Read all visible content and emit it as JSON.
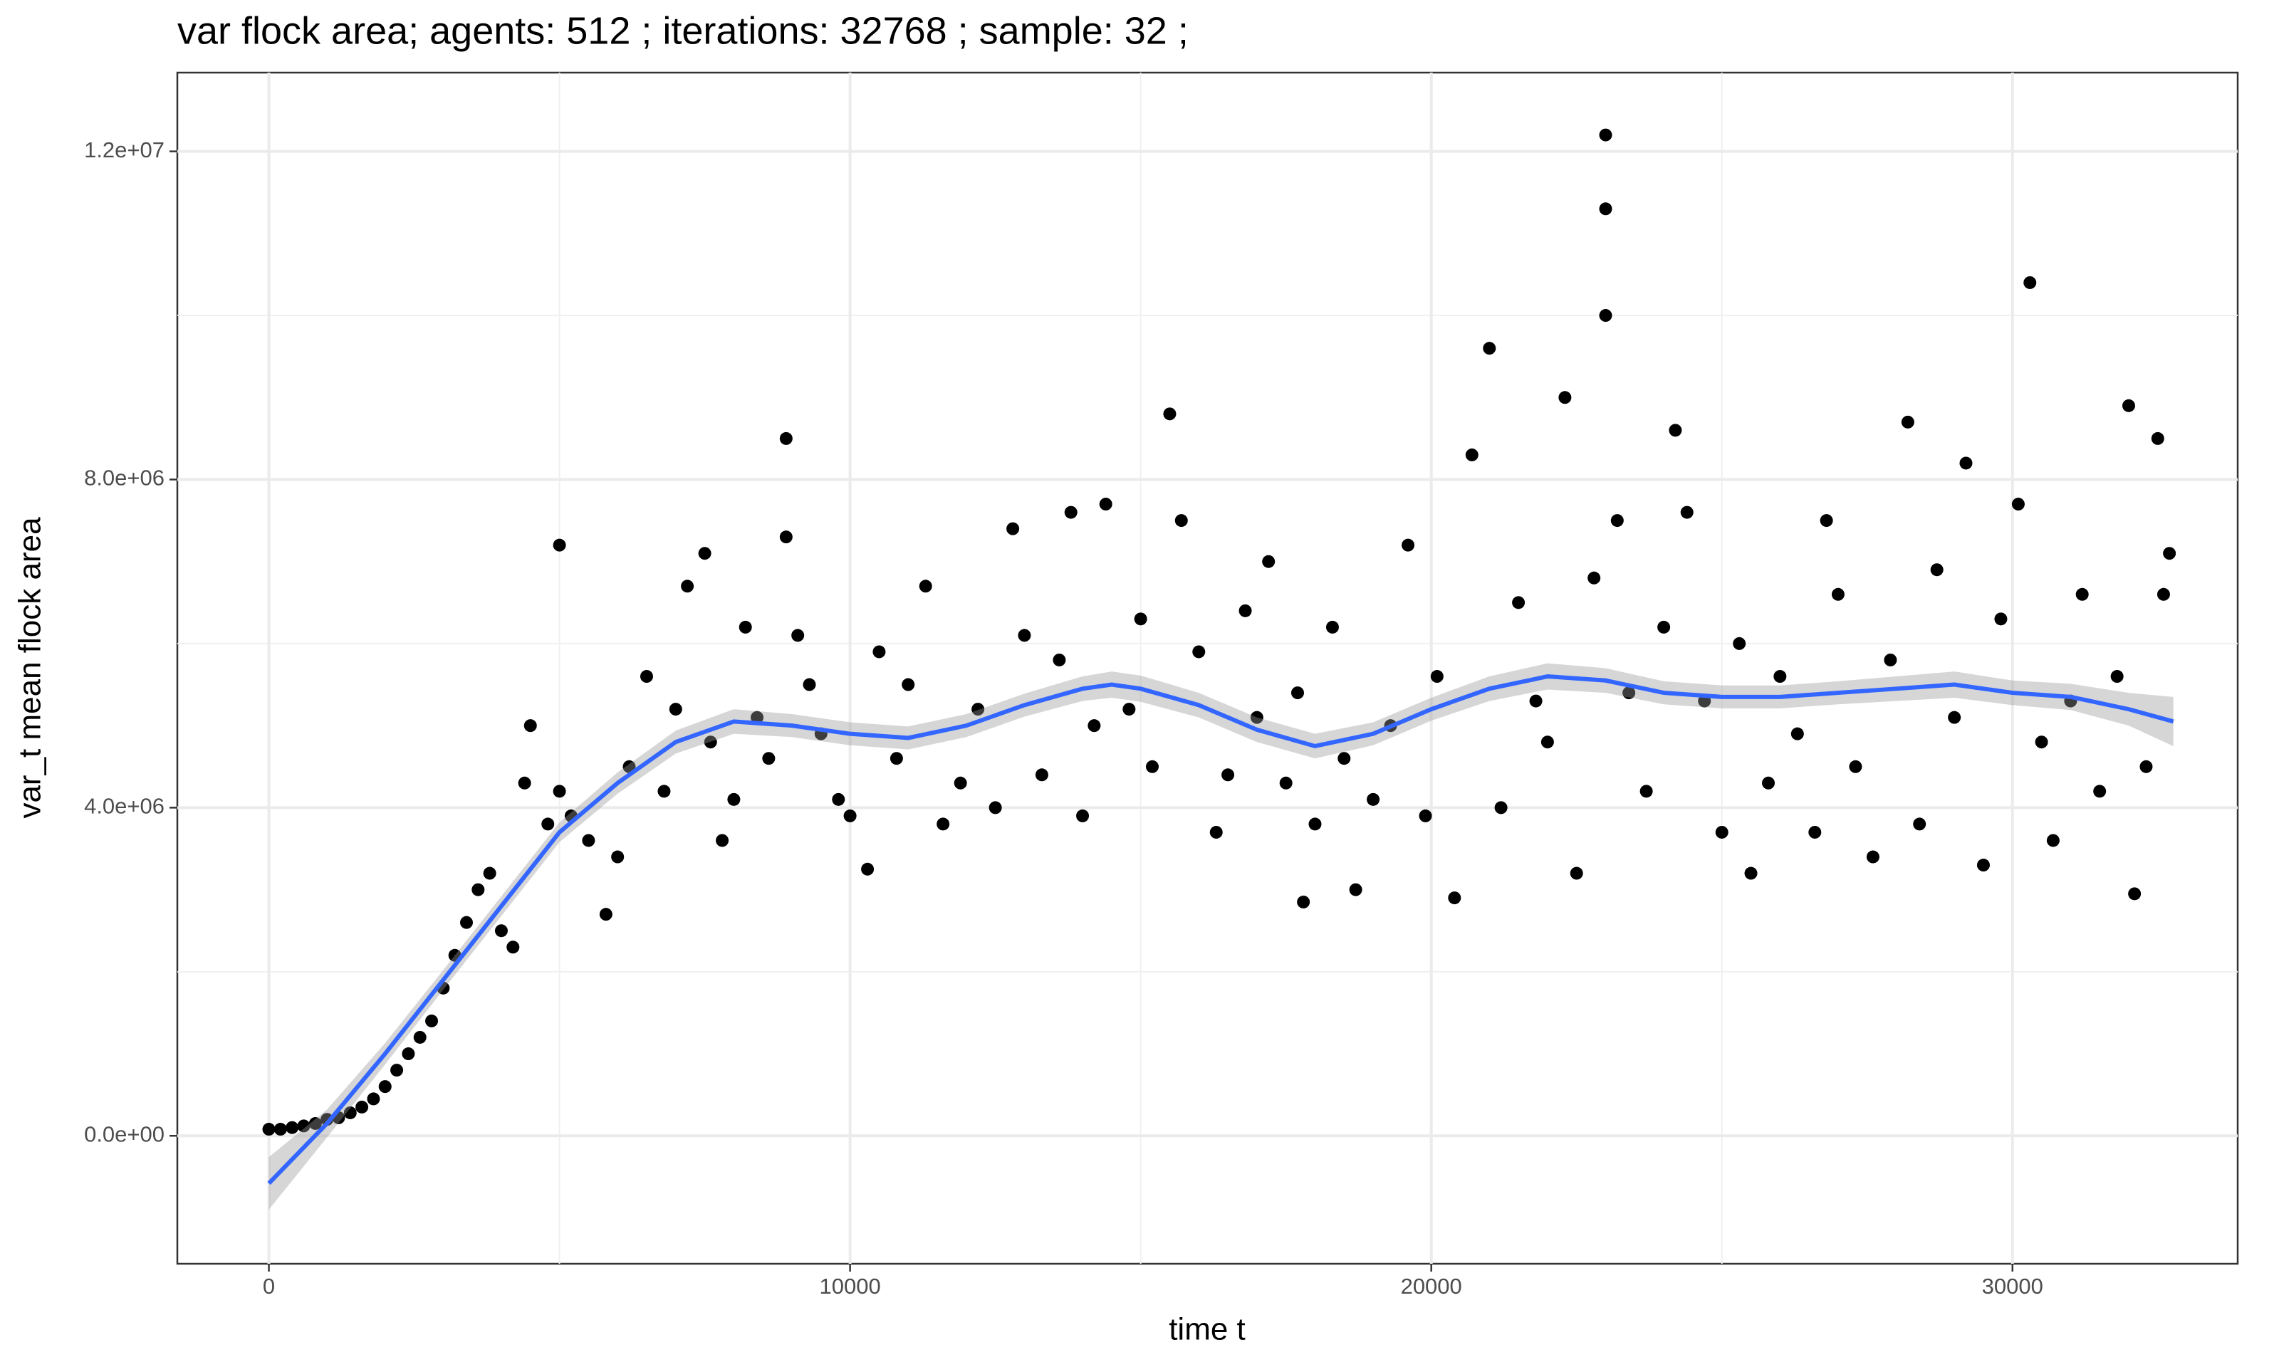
{
  "chart_data": {
    "type": "scatter",
    "title": "var flock area; agents: 512 ; iterations: 32768 ; sample: 32 ;",
    "x_label": "time t",
    "y_label": "var_t mean flock area",
    "xlim": [
      -1575,
      33875
    ],
    "ylim": [
      -1560000,
      12960000
    ],
    "xticks": [
      0,
      10000,
      20000,
      30000
    ],
    "yticks": [
      {
        "value": 0,
        "label": "0.0e+00"
      },
      {
        "value": 4000000,
        "label": "4.0e+06"
      },
      {
        "value": 8000000,
        "label": "8.0e+06"
      },
      {
        "value": 12000000,
        "label": "1.2e+07"
      }
    ],
    "xminor": [
      5000,
      15000,
      25000
    ],
    "yminor": [
      2000000,
      6000000,
      10000000
    ],
    "grid": true,
    "point_color": "#000000",
    "x": [
      0,
      200,
      400,
      600,
      800,
      1000,
      1200,
      1400,
      1600,
      1800,
      2000,
      2200,
      2400,
      2600,
      2800,
      3000,
      3200,
      3400,
      3600,
      3800,
      4000,
      4200,
      4400,
      4500,
      4800,
      5000,
      5000,
      5200,
      5500,
      5800,
      6000,
      6200,
      6500,
      6800,
      7000,
      7200,
      7500,
      7600,
      7800,
      8000,
      8200,
      8400,
      8600,
      8900,
      8900,
      9100,
      9300,
      9500,
      9800,
      10000,
      10300,
      10500,
      10800,
      11000,
      11300,
      11600,
      11900,
      12200,
      12500,
      12800,
      13000,
      13300,
      13600,
      13800,
      14000,
      14200,
      14400,
      14800,
      15000,
      15200,
      15500,
      15700,
      16000,
      16300,
      16500,
      16800,
      17000,
      17200,
      17500,
      17700,
      17800,
      18000,
      18300,
      18500,
      18700,
      19000,
      19300,
      19600,
      19900,
      20100,
      20400,
      20700,
      21000,
      21200,
      21500,
      21800,
      22000,
      22300,
      22500,
      22800,
      23000,
      23000,
      23000,
      23200,
      23400,
      23700,
      24000,
      24200,
      24400,
      24700,
      25000,
      25300,
      25500,
      25800,
      26000,
      26300,
      26600,
      26800,
      27000,
      27300,
      27600,
      27900,
      28200,
      28400,
      28700,
      29000,
      29200,
      29500,
      29800,
      30100,
      30300,
      30500,
      30700,
      31000,
      31200,
      31500,
      31800,
      32000,
      32100,
      32300,
      32500,
      32600,
      32700
    ],
    "values": [
      80000,
      80000,
      100000,
      120000,
      150000,
      200000,
      220000,
      280000,
      350000,
      450000,
      600000,
      800000,
      1000000,
      1200000,
      1400000,
      1800000,
      2200000,
      2600000,
      3000000,
      3200000,
      2500000,
      2300000,
      4300000,
      5000000,
      3800000,
      7200000,
      4200000,
      3900000,
      3600000,
      2700000,
      3400000,
      4500000,
      5600000,
      4200000,
      5200000,
      6700000,
      7100000,
      4800000,
      3600000,
      4100000,
      6200000,
      5100000,
      4600000,
      8500000,
      7300000,
      6100000,
      5500000,
      4900000,
      4100000,
      3900000,
      3250000,
      5900000,
      4600000,
      5500000,
      6700000,
      3800000,
      4300000,
      5200000,
      4000000,
      7400000,
      6100000,
      4400000,
      5800000,
      7600000,
      3900000,
      5000000,
      7700000,
      5200000,
      6300000,
      4500000,
      8800000,
      7500000,
      5900000,
      3700000,
      4400000,
      6400000,
      5100000,
      7000000,
      4300000,
      5400000,
      2850000,
      3800000,
      6200000,
      4600000,
      3000000,
      4100000,
      5000000,
      7200000,
      3900000,
      5600000,
      2900000,
      8300000,
      9600000,
      4000000,
      6500000,
      5300000,
      4800000,
      9000000,
      3200000,
      6800000,
      10000000,
      12200000,
      11300000,
      7500000,
      5400000,
      4200000,
      6200000,
      8600000,
      7600000,
      5300000,
      3700000,
      6000000,
      3200000,
      4300000,
      5600000,
      4900000,
      3700000,
      7500000,
      6600000,
      4500000,
      3400000,
      5800000,
      8700000,
      3800000,
      6900000,
      5100000,
      8200000,
      3300000,
      6300000,
      7700000,
      10400000,
      4800000,
      3600000,
      5300000,
      6600000,
      4200000,
      5600000,
      8900000,
      2950000,
      4500000,
      8500000,
      6600000,
      7100000
    ],
    "smooth": {
      "color": "#3366ff",
      "band_color": "#999999",
      "x": [
        0,
        1000,
        2000,
        3000,
        4000,
        5000,
        6000,
        7000,
        8000,
        9000,
        10000,
        11000,
        12000,
        13000,
        14000,
        14500,
        15000,
        16000,
        17000,
        18000,
        19000,
        20000,
        21000,
        22000,
        23000,
        24000,
        25000,
        26000,
        27000,
        28000,
        29000,
        30000,
        31000,
        32000,
        32768
      ],
      "values": [
        -580000,
        150000,
        1000000,
        1900000,
        2800000,
        3700000,
        4300000,
        4800000,
        5050000,
        5000000,
        4900000,
        4850000,
        5000000,
        5250000,
        5450000,
        5500000,
        5450000,
        5250000,
        4950000,
        4750000,
        4900000,
        5200000,
        5450000,
        5600000,
        5550000,
        5400000,
        5350000,
        5350000,
        5400000,
        5450000,
        5500000,
        5400000,
        5350000,
        5200000,
        5050000
      ],
      "lower": [
        -900000,
        -20000,
        870000,
        1780000,
        2680000,
        3580000,
        4170000,
        4660000,
        4900000,
        4860000,
        4760000,
        4710000,
        4860000,
        5110000,
        5300000,
        5340000,
        5290000,
        5100000,
        4800000,
        4600000,
        4760000,
        5060000,
        5300000,
        5440000,
        5400000,
        5260000,
        5210000,
        5210000,
        5260000,
        5300000,
        5340000,
        5250000,
        5190000,
        5000000,
        4750000
      ],
      "upper": [
        -260000,
        320000,
        1130000,
        2020000,
        2920000,
        3820000,
        4430000,
        4940000,
        5200000,
        5140000,
        5040000,
        4990000,
        5140000,
        5390000,
        5600000,
        5660000,
        5610000,
        5400000,
        5100000,
        4900000,
        5040000,
        5340000,
        5600000,
        5760000,
        5700000,
        5540000,
        5490000,
        5490000,
        5540000,
        5600000,
        5660000,
        5550000,
        5510000,
        5400000,
        5350000
      ]
    }
  }
}
